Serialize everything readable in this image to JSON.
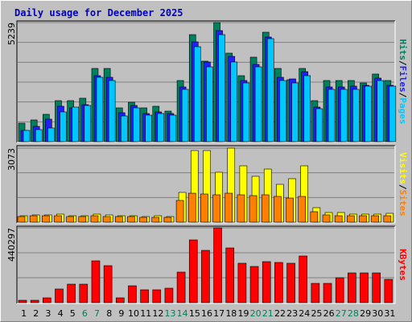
{
  "chart_data": [
    {
      "type": "bar",
      "title": "Daily usage for December 2025",
      "categories": [
        "1",
        "2",
        "3",
        "4",
        "5",
        "6",
        "7",
        "8",
        "9",
        "10",
        "11",
        "12",
        "13",
        "14",
        "15",
        "16",
        "17",
        "18",
        "19",
        "20",
        "21",
        "22",
        "23",
        "24",
        "25",
        "26",
        "27",
        "28",
        "29",
        "30",
        "31"
      ],
      "category_colors": [
        "#000000",
        "#000000",
        "#000000",
        "#000000",
        "#000000",
        "#00805c",
        "#00805c",
        "#000000",
        "#000000",
        "#000000",
        "#000000",
        "#000000",
        "#00805c",
        "#00805c",
        "#000000",
        "#000000",
        "#000000",
        "#000000",
        "#000000",
        "#00805c",
        "#00805c",
        "#000000",
        "#000000",
        "#000000",
        "#000000",
        "#000000",
        "#00805c",
        "#00805c",
        "#000000",
        "#000000",
        "#000000"
      ],
      "legend_separator": "/",
      "series": [
        {
          "name": "Hits",
          "color": "#00805c",
          "values": [
            814,
            956,
            1204,
            1805,
            1805,
            1912,
            3221,
            3221,
            1487,
            1735,
            1487,
            1558,
            1345,
            2690,
            4708,
            3540,
            5239,
            3894,
            2903,
            3717,
            4814,
            3221,
            2726,
            3221,
            1805,
            2690,
            2690,
            2690,
            2584,
            2974,
            2690
          ]
        },
        {
          "name": "Files",
          "color": "#2020ff",
          "values": [
            496,
            673,
            991,
            1558,
            1487,
            1628,
            2903,
            2832,
            1274,
            1593,
            1239,
            1310,
            1239,
            2407,
            4390,
            3505,
            4885,
            3752,
            2690,
            3398,
            4602,
            2832,
            2761,
            3080,
            1522,
            2407,
            2407,
            2443,
            2478,
            2797,
            2478
          ]
        },
        {
          "name": "Pages",
          "color": "#00c8ff",
          "values": [
            496,
            531,
            602,
            1310,
            1522,
            1593,
            2832,
            2690,
            1133,
            1487,
            1168,
            1239,
            1168,
            2301,
            4177,
            3292,
            4708,
            3505,
            2584,
            3292,
            4531,
            2690,
            2584,
            2903,
            1451,
            2301,
            2301,
            2301,
            2443,
            2690,
            2443
          ]
        }
      ],
      "ylim": [
        0,
        5239
      ],
      "yticks": [
        5239
      ],
      "grid": true
    },
    {
      "type": "bar",
      "series": [
        {
          "name": "Visits",
          "color": "#ffff00",
          "values": [
            267,
            301,
            301,
            334,
            267,
            267,
            334,
            301,
            267,
            267,
            234,
            267,
            234,
            1236,
            2973,
            2973,
            2071,
            3073,
            2338,
            1904,
            2204,
            1570,
            1804,
            2338,
            601,
            401,
            401,
            334,
            334,
            334,
            367
          ]
        },
        {
          "name": "Sites",
          "color": "#ff8000",
          "values": [
            234,
            267,
            267,
            267,
            234,
            234,
            267,
            234,
            234,
            234,
            200,
            200,
            200,
            902,
            1202,
            1169,
            1136,
            1202,
            1136,
            1102,
            1136,
            1069,
            1002,
            1069,
            434,
            301,
            267,
            267,
            267,
            267,
            267
          ]
        }
      ],
      "ylim": [
        0,
        3073
      ],
      "yticks": [
        3073
      ],
      "grid": true
    },
    {
      "type": "bar",
      "series": [
        {
          "name": "KBytes",
          "color": "#ff0000",
          "values": [
            14202,
            14202,
            28404,
            80478,
            108882,
            108882,
            246168,
            217764,
            28404,
            99414,
            75744,
            75744,
            85212,
            179892,
            369252,
            307710,
            440297,
            321912,
            231966,
            213030,
            241434,
            236700,
            231966,
            274572,
            113616,
            113616,
            146754,
            175158,
            175158,
            175158,
            137286
          ]
        }
      ],
      "ylim": [
        0,
        440297
      ],
      "yticks": [
        440297
      ],
      "grid": true
    }
  ]
}
